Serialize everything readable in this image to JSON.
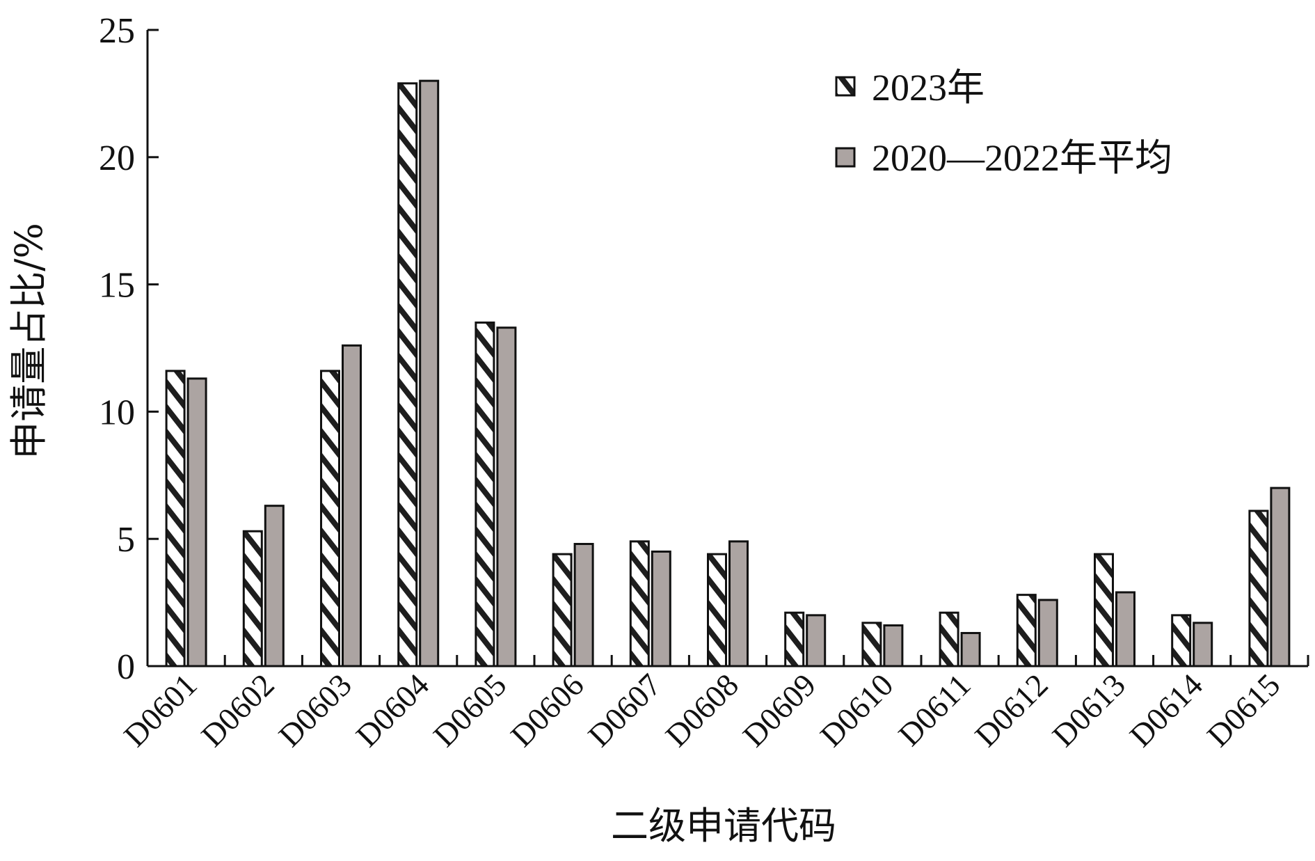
{
  "chart_data": {
    "type": "bar",
    "title": "",
    "xlabel": "二级申请代码",
    "ylabel": "申请量占比/%",
    "ylim": [
      0,
      25
    ],
    "yticks": [
      "0",
      "5",
      "10",
      "15",
      "20",
      "25"
    ],
    "categories": [
      "D0601",
      "D0602",
      "D0603",
      "D0604",
      "D0605",
      "D0606",
      "D0607",
      "D0608",
      "D0609",
      "D0610",
      "D0611",
      "D0612",
      "D0613",
      "D0614",
      "D0615"
    ],
    "series": [
      {
        "name": "2023年",
        "fill": "hatched",
        "color": "#222222",
        "values": [
          11.6,
          5.3,
          11.6,
          22.9,
          13.5,
          4.4,
          4.9,
          4.4,
          2.1,
          1.7,
          2.1,
          2.8,
          4.4,
          2.0,
          6.1
        ]
      },
      {
        "name": "2020—2022年平均",
        "fill": "solid",
        "color": "#aca4a2",
        "values": [
          11.3,
          6.3,
          12.6,
          23.0,
          13.3,
          4.8,
          4.5,
          4.9,
          2.0,
          1.6,
          1.3,
          2.6,
          2.9,
          1.7,
          7.0
        ]
      }
    ],
    "legend_position": "top-right",
    "grid": false
  }
}
